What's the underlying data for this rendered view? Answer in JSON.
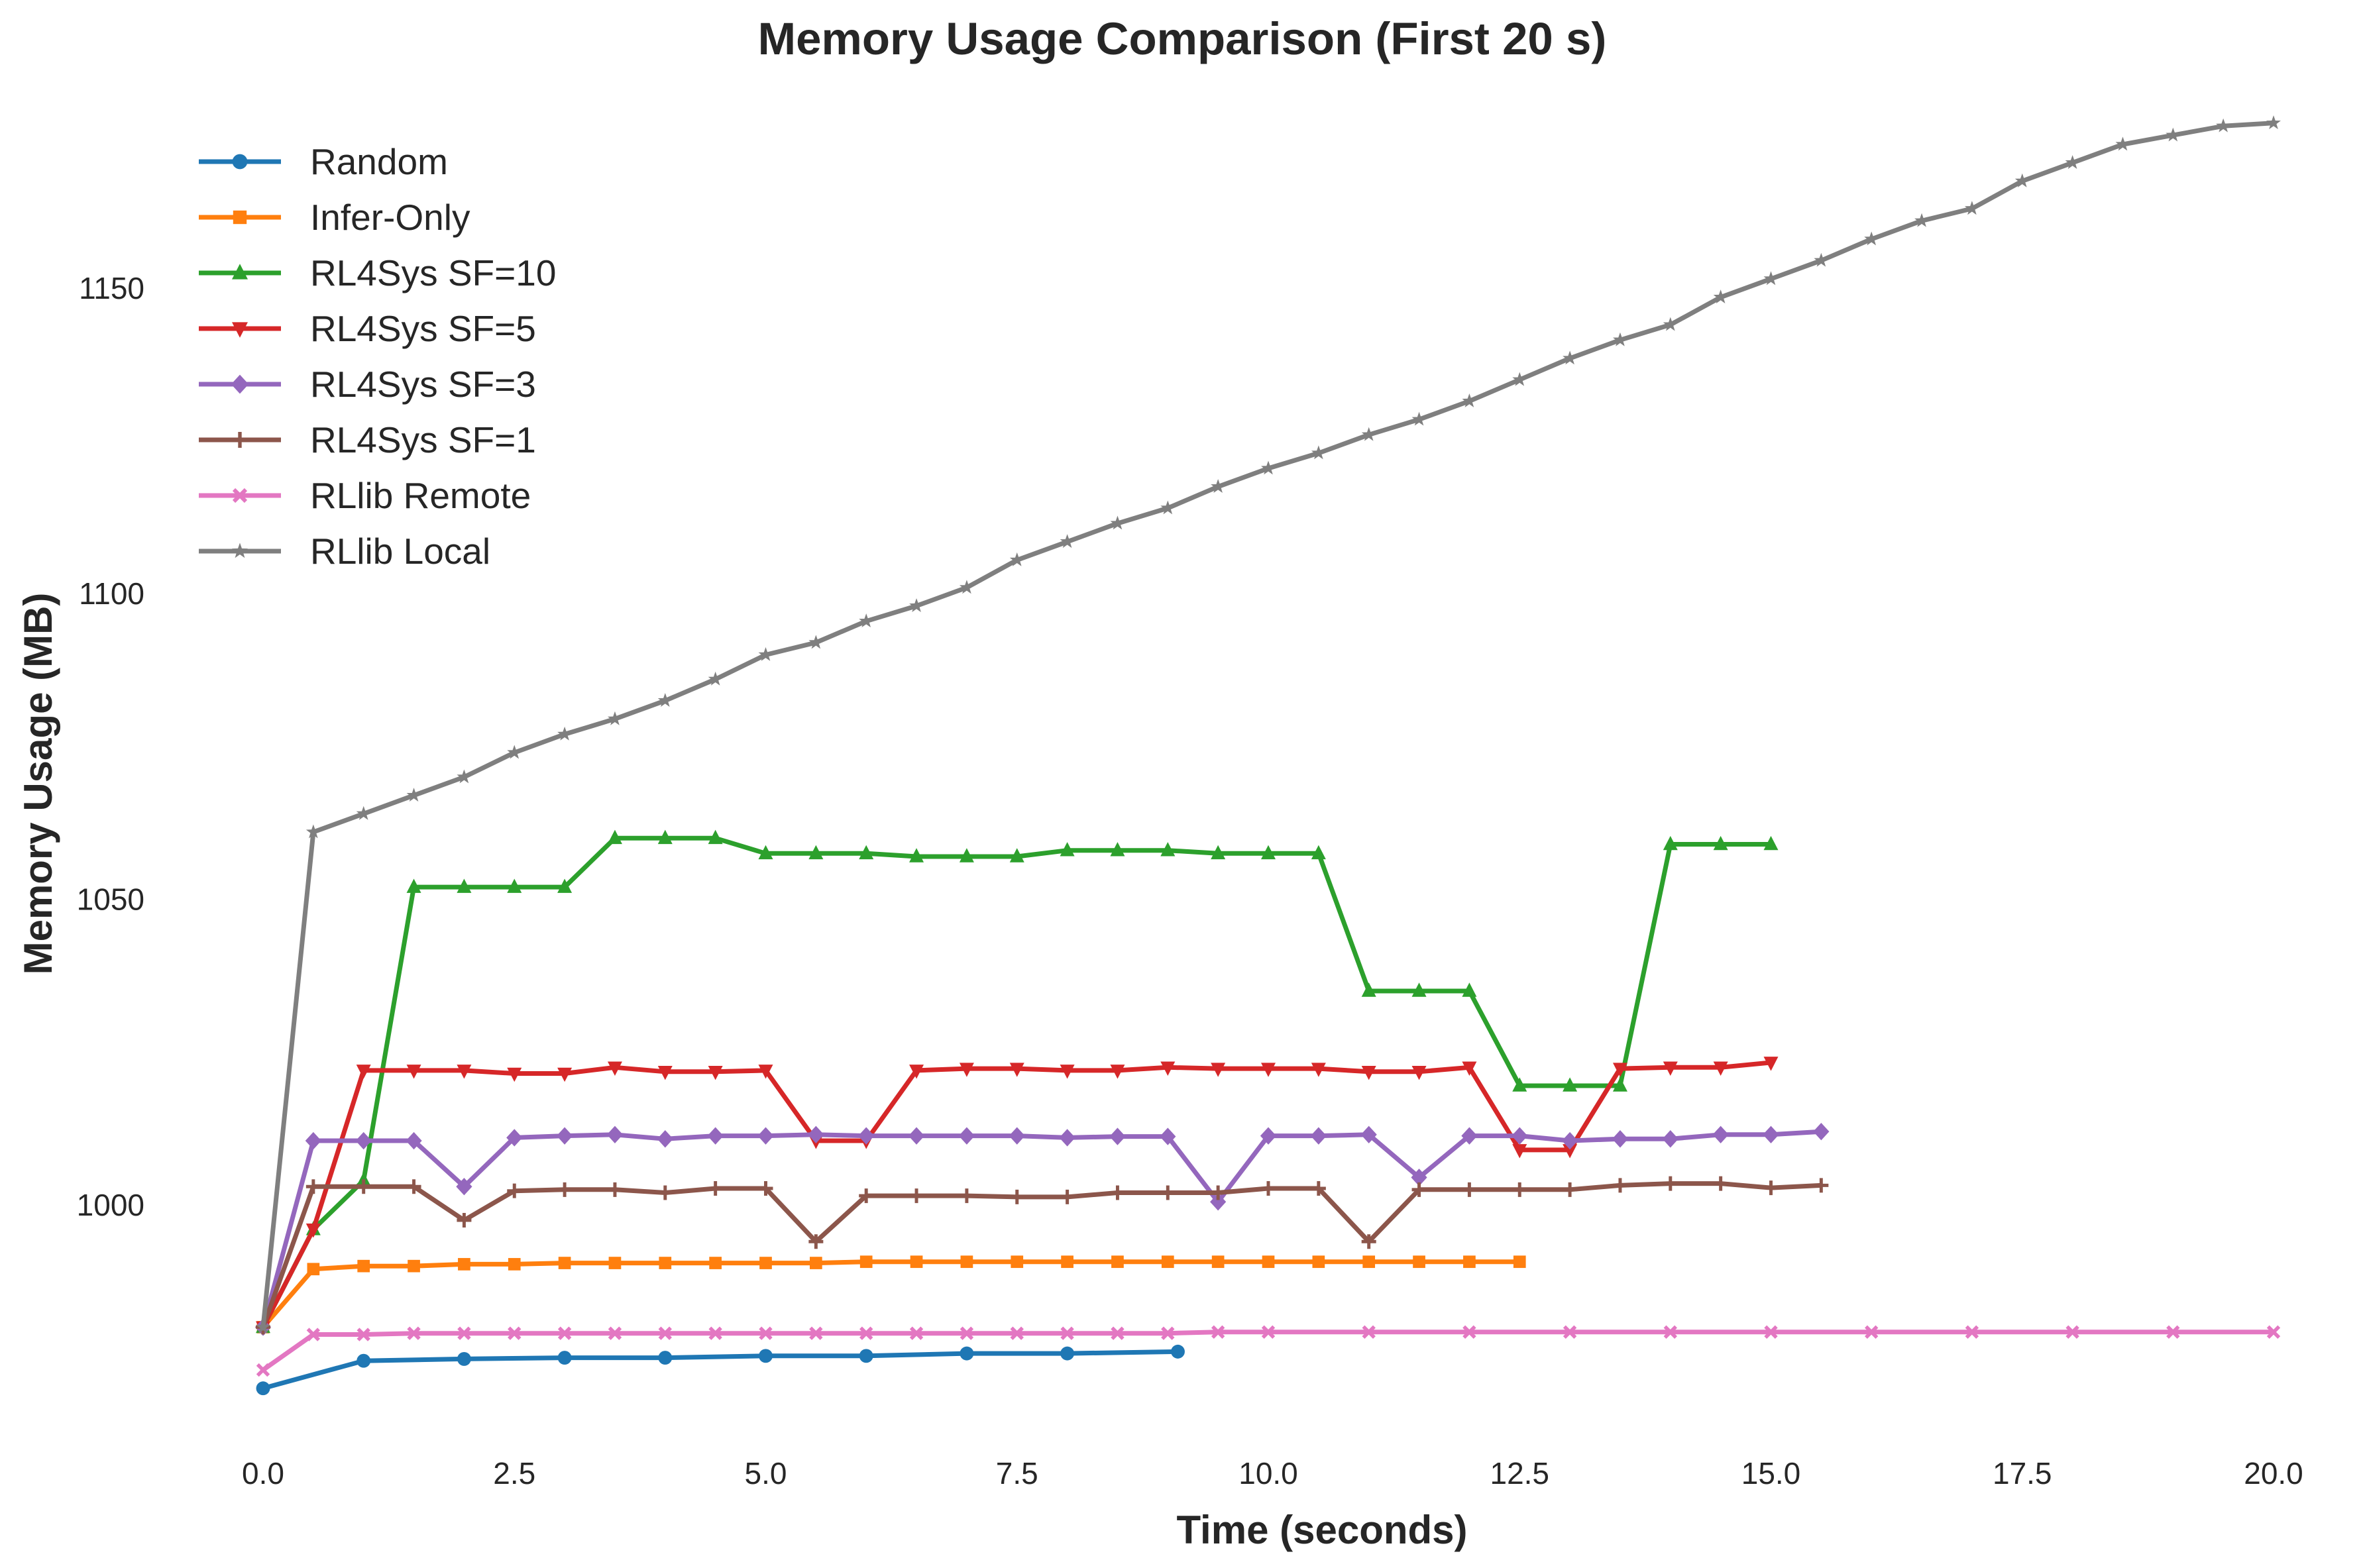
{
  "chart_data": {
    "type": "line",
    "title": "Memory Usage Comparison (First 20 s)",
    "xlabel": "Time (seconds)",
    "ylabel": "Memory Usage (MB)",
    "xlim": [
      0,
      20
    ],
    "ylim": [
      960,
      1180
    ],
    "xticks": [
      0,
      2.5,
      5,
      7.5,
      10,
      12.5,
      15,
      17.5,
      20
    ],
    "xtick_labels": [
      "0.0",
      "2.5",
      "5.0",
      "7.5",
      "10.0",
      "12.5",
      "15.0",
      "17.5",
      "20.0"
    ],
    "yticks": [
      1000,
      1050,
      1100,
      1150
    ],
    "ytick_labels": [
      "1000",
      "1050",
      "1100",
      "1150"
    ],
    "grid": false,
    "legend_position": "top-left",
    "series": [
      {
        "name": "Random",
        "color": "#1f77b4",
        "marker": "circle",
        "x": [
          0.0,
          1.0,
          2.0,
          3.0,
          4.0,
          5.0,
          6.0,
          7.0,
          8.0,
          9.1
        ],
        "y": [
          970,
          974.5,
          974.8,
          975.0,
          975.0,
          975.3,
          975.3,
          975.7,
          975.7,
          976.0
        ]
      },
      {
        "name": "Infer-Only",
        "color": "#ff7f0e",
        "marker": "square",
        "x": [
          0.0,
          0.5,
          1.0,
          1.5,
          2.0,
          2.5,
          3.0,
          3.5,
          4.0,
          4.5,
          5.0,
          5.5,
          6.0,
          6.5,
          7.0,
          7.5,
          8.0,
          8.5,
          9.0,
          9.5,
          10.0,
          10.5,
          11.0,
          11.5,
          12.0,
          12.5
        ],
        "y": [
          980,
          989.5,
          990,
          990,
          990.3,
          990.3,
          990.5,
          990.5,
          990.5,
          990.5,
          990.5,
          990.5,
          990.7,
          990.7,
          990.7,
          990.7,
          990.7,
          990.7,
          990.7,
          990.7,
          990.7,
          990.7,
          990.7,
          990.7,
          990.7,
          990.7
        ]
      },
      {
        "name": "RL4Sys SF=10",
        "color": "#2ca02c",
        "marker": "triangle-up",
        "x": [
          0.0,
          0.5,
          1.0,
          1.5,
          2.0,
          2.5,
          3.0,
          3.5,
          4.0,
          4.5,
          5.0,
          5.5,
          6.0,
          6.5,
          7.0,
          7.5,
          8.0,
          8.5,
          9.0,
          9.5,
          10.0,
          10.5,
          11.0,
          11.5,
          12.0,
          12.5,
          13.0,
          13.5,
          14.0,
          14.5,
          15.0
        ],
        "y": [
          980,
          996,
          1004,
          1052,
          1052,
          1052,
          1052,
          1060,
          1060,
          1060,
          1057.5,
          1057.5,
          1057.5,
          1057,
          1057,
          1057,
          1058,
          1058,
          1058,
          1057.5,
          1057.5,
          1057.5,
          1035,
          1035,
          1035,
          1019.5,
          1019.5,
          1019.5,
          1059,
          1059,
          1059
        ]
      },
      {
        "name": "RL4Sys SF=5",
        "color": "#d62728",
        "marker": "triangle-down",
        "x": [
          0.0,
          0.5,
          1.0,
          1.5,
          2.0,
          2.5,
          3.0,
          3.5,
          4.0,
          4.5,
          5.0,
          5.5,
          6.0,
          6.5,
          7.0,
          7.5,
          8.0,
          8.5,
          9.0,
          9.5,
          10.0,
          10.5,
          11.0,
          11.5,
          12.0,
          12.5,
          13.0,
          13.5,
          14.0,
          14.5,
          15.0
        ],
        "y": [
          980,
          996,
          1022,
          1022,
          1022,
          1021.5,
          1021.5,
          1022.5,
          1021.8,
          1021.8,
          1022,
          1010.5,
          1010.5,
          1022,
          1022.3,
          1022.3,
          1022,
          1022,
          1022.5,
          1022.3,
          1022.3,
          1022.3,
          1021.8,
          1021.8,
          1022.5,
          1009,
          1009,
          1022.3,
          1022.5,
          1022.5,
          1023.3
        ]
      },
      {
        "name": "RL4Sys SF=3",
        "color": "#9467bd",
        "marker": "diamond",
        "x": [
          0.0,
          0.5,
          1.0,
          1.5,
          2.0,
          2.5,
          3.0,
          3.5,
          4.0,
          4.5,
          5.0,
          5.5,
          6.0,
          6.5,
          7.0,
          7.5,
          8.0,
          8.5,
          9.0,
          9.5,
          10.0,
          10.5,
          11.0,
          11.5,
          12.0,
          12.5,
          13.0,
          13.5,
          14.0,
          14.5,
          15.0,
          15.5
        ],
        "y": [
          980,
          1010.5,
          1010.5,
          1010.5,
          1003,
          1011,
          1011.3,
          1011.5,
          1010.8,
          1011.3,
          1011.3,
          1011.5,
          1011.3,
          1011.3,
          1011.3,
          1011.3,
          1011,
          1011.2,
          1011.2,
          1000.5,
          1011.3,
          1011.3,
          1011.5,
          1004.5,
          1011.3,
          1011.3,
          1010.5,
          1010.8,
          1010.8,
          1011.5,
          1011.5,
          1012
        ]
      },
      {
        "name": "RL4Sys SF=1",
        "color": "#8c564b",
        "marker": "plus",
        "x": [
          0.0,
          0.5,
          1.0,
          1.5,
          2.0,
          2.5,
          3.0,
          3.5,
          4.0,
          4.5,
          5.0,
          5.5,
          6.0,
          6.5,
          7.0,
          7.5,
          8.0,
          8.5,
          9.0,
          9.5,
          10.0,
          10.5,
          11.0,
          11.5,
          12.0,
          12.5,
          13.0,
          13.5,
          14.0,
          14.5,
          15.0,
          15.5
        ],
        "y": [
          980,
          1003,
          1003,
          1003,
          997.5,
          1002.3,
          1002.5,
          1002.5,
          1002,
          1002.7,
          1002.7,
          994,
          1001.5,
          1001.5,
          1001.5,
          1001.3,
          1001.3,
          1002,
          1002,
          1002,
          1002.7,
          1002.7,
          994,
          1002.5,
          1002.5,
          1002.5,
          1002.5,
          1003.2,
          1003.5,
          1003.5,
          1002.8,
          1003.2
        ]
      },
      {
        "name": "RLlib Remote",
        "color": "#e377c2",
        "marker": "x",
        "x": [
          0.0,
          0.5,
          1.0,
          1.5,
          2.0,
          2.5,
          3.0,
          3.5,
          4.0,
          4.5,
          5.0,
          5.5,
          6.0,
          6.5,
          7.0,
          7.5,
          8.0,
          8.5,
          9.0,
          9.5,
          10.0,
          11.0,
          12.0,
          13.0,
          14.0,
          15.0,
          16.0,
          17.0,
          18.0,
          19.0,
          20.0
        ],
        "y": [
          973,
          978.8,
          978.8,
          979,
          979,
          979,
          979,
          979,
          979,
          979,
          979,
          979,
          979,
          979,
          979,
          979,
          979,
          979,
          979,
          979.2,
          979.2,
          979.2,
          979.2,
          979.2,
          979.2,
          979.2,
          979.2,
          979.2,
          979.2,
          979.2,
          979.2
        ]
      },
      {
        "name": "RLlib Local",
        "color": "#7f7f7f",
        "marker": "star",
        "x": [
          0.0,
          0.5,
          1.0,
          1.5,
          2.0,
          2.5,
          3.0,
          3.5,
          4.0,
          4.5,
          5.0,
          5.5,
          6.0,
          6.5,
          7.0,
          7.5,
          8.0,
          8.5,
          9.0,
          9.5,
          10.0,
          10.5,
          11.0,
          11.5,
          12.0,
          12.5,
          13.0,
          13.5,
          14.0,
          14.5,
          15.0,
          15.5,
          16.0,
          16.5,
          17.0,
          17.5,
          18.0,
          18.5,
          19.0,
          19.5,
          20.0
        ],
        "y": [
          980,
          1061,
          1064,
          1067,
          1070,
          1074,
          1077,
          1079.5,
          1082.5,
          1086,
          1090,
          1092,
          1095.5,
          1098,
          1101,
          1105.5,
          1108.5,
          1111.5,
          1114,
          1117.5,
          1120.5,
          1123,
          1126,
          1128.5,
          1131.5,
          1135,
          1138.5,
          1141.5,
          1144,
          1148.5,
          1151.5,
          1154.5,
          1158,
          1161,
          1163,
          1167.5,
          1170.5,
          1173.5,
          1175,
          1176.5,
          1177
        ]
      }
    ]
  }
}
